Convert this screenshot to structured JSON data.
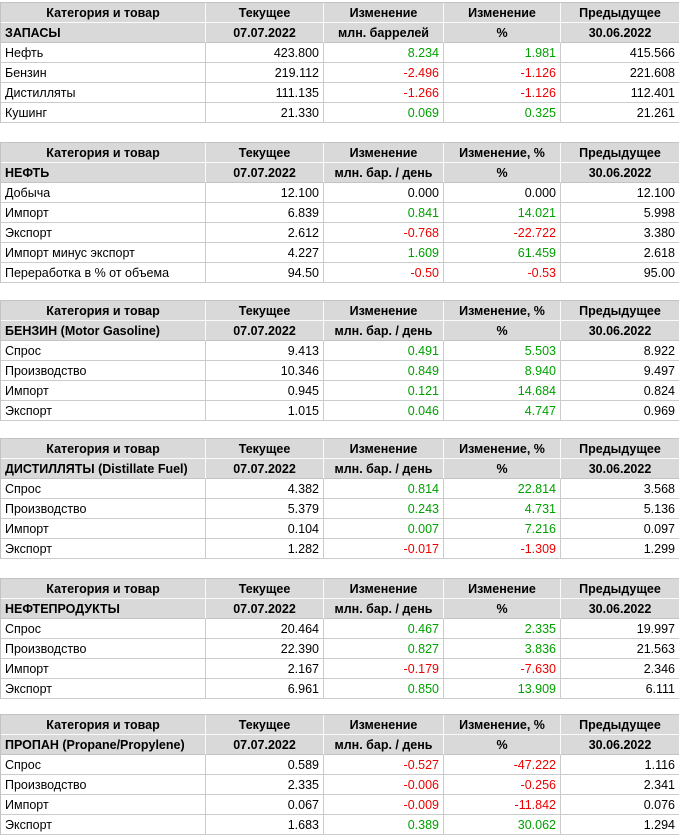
{
  "colors": {
    "positive": "#00a000",
    "negative": "#ee0000",
    "header_bg": "#d9d9d9"
  },
  "tables": [
    {
      "id": "inventories",
      "headers": [
        "Категория и товар",
        "Текущее",
        "Изменение",
        "Изменение",
        "Предыдущее"
      ],
      "subheader": [
        "ЗАПАСЫ",
        "07.07.2022",
        "млн. баррелей",
        "%",
        "30.06.2022"
      ],
      "rows": [
        {
          "label": "Нефть",
          "current": "423.800",
          "change": "8.234",
          "change_pct": "1.981",
          "previous": "415.566"
        },
        {
          "label": "Бензин",
          "current": "219.112",
          "change": "-2.496",
          "change_pct": "-1.126",
          "previous": "221.608"
        },
        {
          "label": "Дистилляты",
          "current": "111.135",
          "change": "-1.266",
          "change_pct": "-1.126",
          "previous": "112.401"
        },
        {
          "label": "Кушинг",
          "current": "21.330",
          "change": "0.069",
          "change_pct": "0.325",
          "previous": "21.261"
        }
      ]
    },
    {
      "id": "crude-oil",
      "headers": [
        "Категория и товар",
        "Текущее",
        "Изменение",
        "Изменение, %",
        "Предыдущее"
      ],
      "subheader": [
        "НЕФТЬ",
        "07.07.2022",
        "млн. бар. / день",
        "%",
        "30.06.2022"
      ],
      "rows": [
        {
          "label": "Добыча",
          "current": "12.100",
          "change": "0.000",
          "change_pct": "0.000",
          "previous": "12.100"
        },
        {
          "label": "Импорт",
          "current": "6.839",
          "change": "0.841",
          "change_pct": "14.021",
          "previous": "5.998"
        },
        {
          "label": "Экспорт",
          "current": "2.612",
          "change": "-0.768",
          "change_pct": "-22.722",
          "previous": "3.380"
        },
        {
          "label": "Импорт минус экспорт",
          "current": "4.227",
          "change": "1.609",
          "change_pct": "61.459",
          "previous": "2.618"
        },
        {
          "label": "Переработка в % от объема",
          "current": "94.50",
          "change": "-0.50",
          "change_pct": "-0.53",
          "previous": "95.00"
        }
      ]
    },
    {
      "id": "gasoline",
      "headers": [
        "Категория и товар",
        "Текущее",
        "Изменение",
        "Изменение, %",
        "Предыдущее"
      ],
      "subheader": [
        "БЕНЗИН (Motor Gasoline)",
        "07.07.2022",
        "млн. бар. / день",
        "%",
        "30.06.2022"
      ],
      "rows": [
        {
          "label": "Спрос",
          "current": "9.413",
          "change": "0.491",
          "change_pct": "5.503",
          "previous": "8.922"
        },
        {
          "label": "Производство",
          "current": "10.346",
          "change": "0.849",
          "change_pct": "8.940",
          "previous": "9.497"
        },
        {
          "label": "Импорт",
          "current": "0.945",
          "change": "0.121",
          "change_pct": "14.684",
          "previous": "0.824"
        },
        {
          "label": "Экспорт",
          "current": "1.015",
          "change": "0.046",
          "change_pct": "4.747",
          "previous": "0.969"
        }
      ]
    },
    {
      "id": "distillate",
      "headers": [
        "Категория и товар",
        "Текущее",
        "Изменение",
        "Изменение, %",
        "Предыдущее"
      ],
      "subheader": [
        "ДИСТИЛЛЯТЫ (Distillate Fuel)",
        "07.07.2022",
        "млн. бар. / день",
        "%",
        "30.06.2022"
      ],
      "rows": [
        {
          "label": "Спрос",
          "current": "4.382",
          "change": "0.814",
          "change_pct": "22.814",
          "previous": "3.568"
        },
        {
          "label": "Производство",
          "current": "5.379",
          "change": "0.243",
          "change_pct": "4.731",
          "previous": "5.136"
        },
        {
          "label": "Импорт",
          "current": "0.104",
          "change": "0.007",
          "change_pct": "7.216",
          "previous": "0.097"
        },
        {
          "label": "Экспорт",
          "current": "1.282",
          "change": "-0.017",
          "change_pct": "-1.309",
          "previous": "1.299"
        }
      ]
    },
    {
      "id": "petroleum-products",
      "headers": [
        "Категория и товар",
        "Текущее",
        "Изменение",
        "Изменение",
        "Предыдущее"
      ],
      "subheader": [
        "НЕФТЕПРОДУКТЫ",
        "07.07.2022",
        "млн. бар. / день",
        "%",
        "30.06.2022"
      ],
      "rows": [
        {
          "label": "Спрос",
          "current": "20.464",
          "change": "0.467",
          "change_pct": "2.335",
          "previous": "19.997"
        },
        {
          "label": "Производство",
          "current": "22.390",
          "change": "0.827",
          "change_pct": "3.836",
          "previous": "21.563"
        },
        {
          "label": "Импорт",
          "current": "2.167",
          "change": "-0.179",
          "change_pct": "-7.630",
          "previous": "2.346"
        },
        {
          "label": "Экспорт",
          "current": "6.961",
          "change": "0.850",
          "change_pct": "13.909",
          "previous": "6.111"
        }
      ]
    },
    {
      "id": "propane",
      "headers": [
        "Категория и товар",
        "Текущее",
        "Изменение",
        "Изменение, %",
        "Предыдущее"
      ],
      "subheader": [
        "ПРОПАН (Propane/Propylene)",
        "07.07.2022",
        "млн. бар. / день",
        "%",
        "30.06.2022"
      ],
      "rows": [
        {
          "label": "Спрос",
          "current": "0.589",
          "change": "-0.527",
          "change_pct": "-47.222",
          "previous": "1.116"
        },
        {
          "label": "Производство",
          "current": "2.335",
          "change": "-0.006",
          "change_pct": "-0.256",
          "previous": "2.341"
        },
        {
          "label": "Импорт",
          "current": "0.067",
          "change": "-0.009",
          "change_pct": "-11.842",
          "previous": "0.076"
        },
        {
          "label": "Экспорт",
          "current": "1.683",
          "change": "0.389",
          "change_pct": "30.062",
          "previous": "1.294"
        }
      ]
    }
  ]
}
